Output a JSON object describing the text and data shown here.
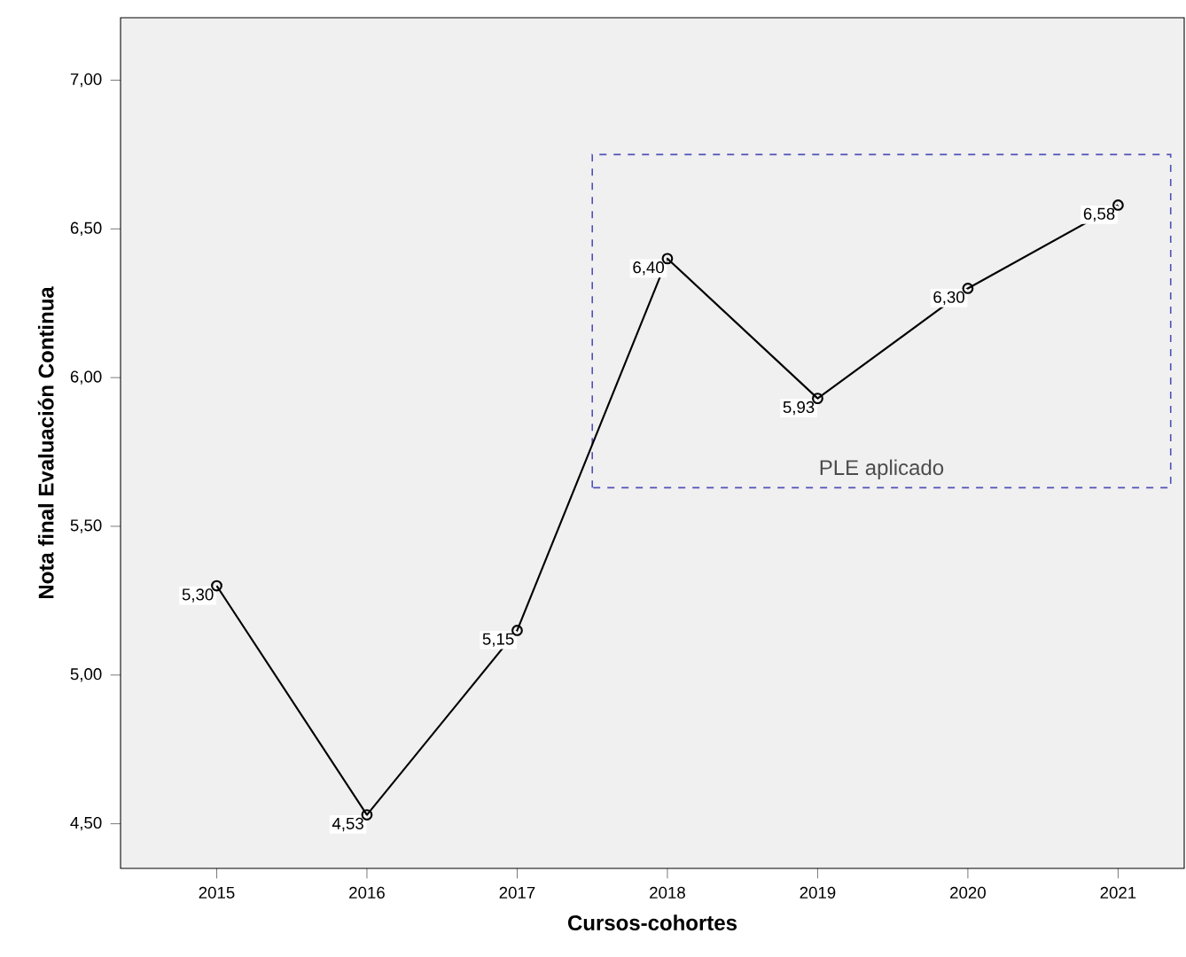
{
  "chart_data": {
    "type": "line",
    "xlabel": "Cursos-cohortes",
    "ylabel": "Nota final Evaluación Continua",
    "x": [
      2015,
      2016,
      2017,
      2018,
      2019,
      2020,
      2021
    ],
    "values": [
      5.3,
      4.53,
      5.15,
      6.4,
      5.93,
      6.3,
      6.58
    ],
    "value_labels": [
      "5,30",
      "4,53",
      "5,15",
      "6,40",
      "5,93",
      "6,30",
      "6,58"
    ],
    "color": "#000000",
    "marker": "circle",
    "line_style": "solid",
    "xlim": [
      2014.36,
      2021.44
    ],
    "xticks": [
      2015,
      2016,
      2017,
      2018,
      2019,
      2020,
      2021
    ],
    "ylim": [
      4.35,
      7.21
    ],
    "yticks": [
      {
        "value": 4.5,
        "label": "4,50"
      },
      {
        "value": 5.0,
        "label": "5,00"
      },
      {
        "value": 5.5,
        "label": "5,50"
      },
      {
        "value": 6.0,
        "label": "6,00"
      },
      {
        "value": 6.5,
        "label": "6,50"
      },
      {
        "value": 7.0,
        "label": "7,00"
      }
    ],
    "bands": [
      {
        "axis": "x",
        "from": 2017.5,
        "to": 2021.35,
        "label": "PLE aplicado",
        "color": "#5050b8"
      }
    ],
    "grid": false
  }
}
